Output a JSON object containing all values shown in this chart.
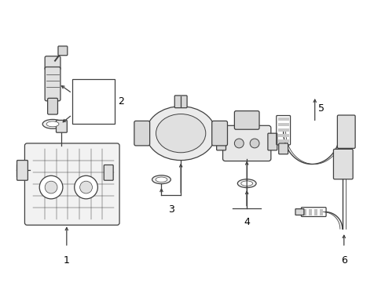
{
  "bg_color": "#ffffff",
  "line_color": "#404040",
  "text_color": "#000000",
  "figsize": [
    4.9,
    3.6
  ],
  "dpi": 100
}
